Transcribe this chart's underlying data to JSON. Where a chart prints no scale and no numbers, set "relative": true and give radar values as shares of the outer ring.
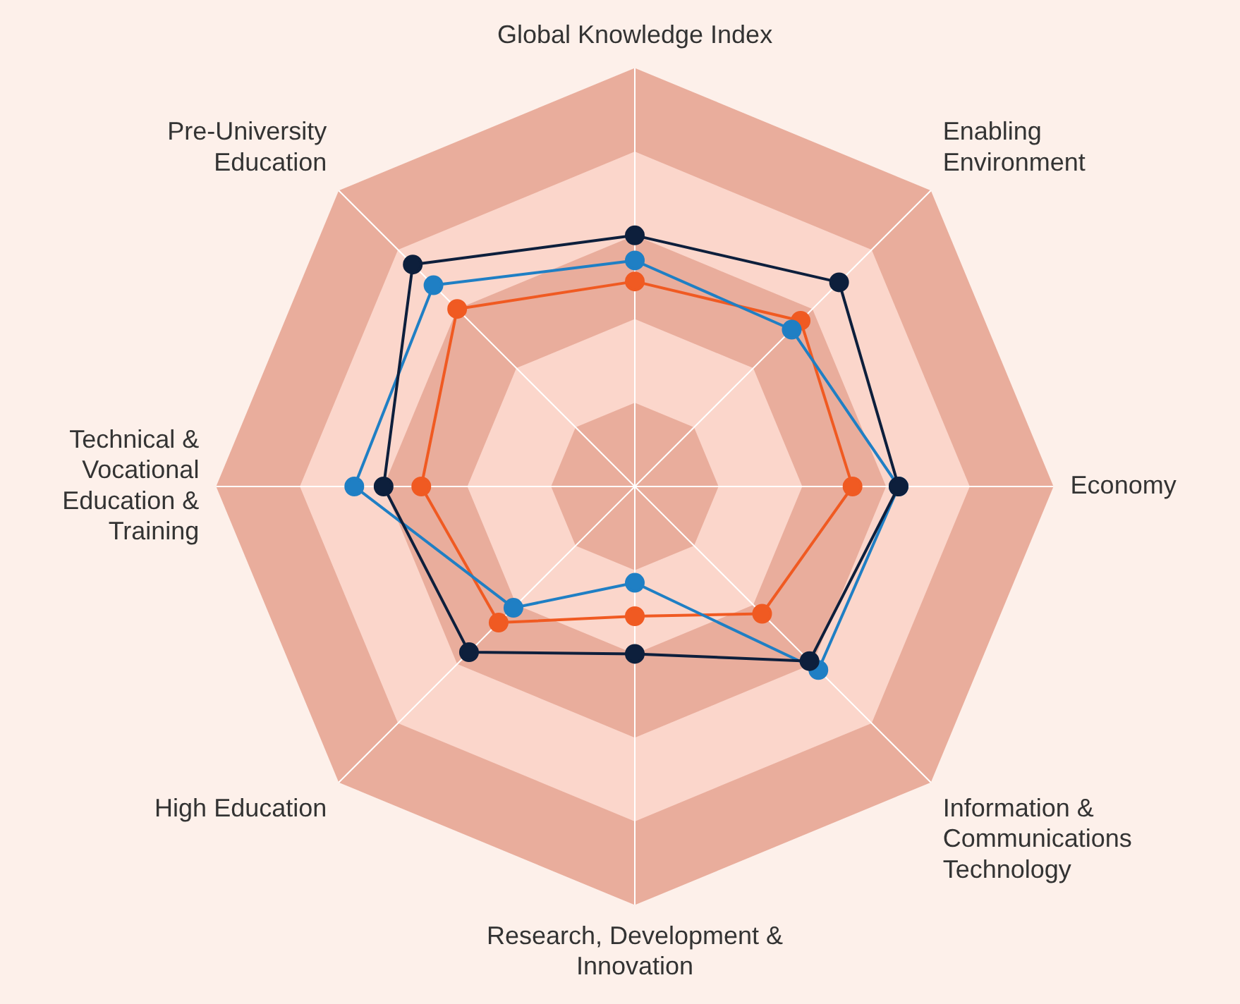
{
  "chart_data": {
    "type": "radar",
    "relative": true,
    "marker": "circle",
    "line_style": "solid",
    "categories": [
      "Global Knowledge Index",
      "Enabling\nEnvironment",
      "Economy",
      "Information &\nCommunications\nTechnology",
      "Research, Development &\nInnovation",
      "High Education",
      "Technical &\nVocational\nEducation &\nTraining",
      "Pre-University\nEducation"
    ],
    "series": [
      {
        "color": "#0d1f3c",
        "values": [
          0.6,
          0.69,
          0.63,
          0.59,
          0.4,
          0.56,
          0.6,
          0.75
        ]
      },
      {
        "color": "#1f7fc4",
        "values": [
          0.54,
          0.53,
          0.63,
          0.62,
          0.23,
          0.41,
          0.67,
          0.68
        ]
      },
      {
        "color": "#f05a22",
        "values": [
          0.49,
          0.56,
          0.52,
          0.43,
          0.31,
          0.46,
          0.51,
          0.6
        ]
      }
    ]
  }
}
